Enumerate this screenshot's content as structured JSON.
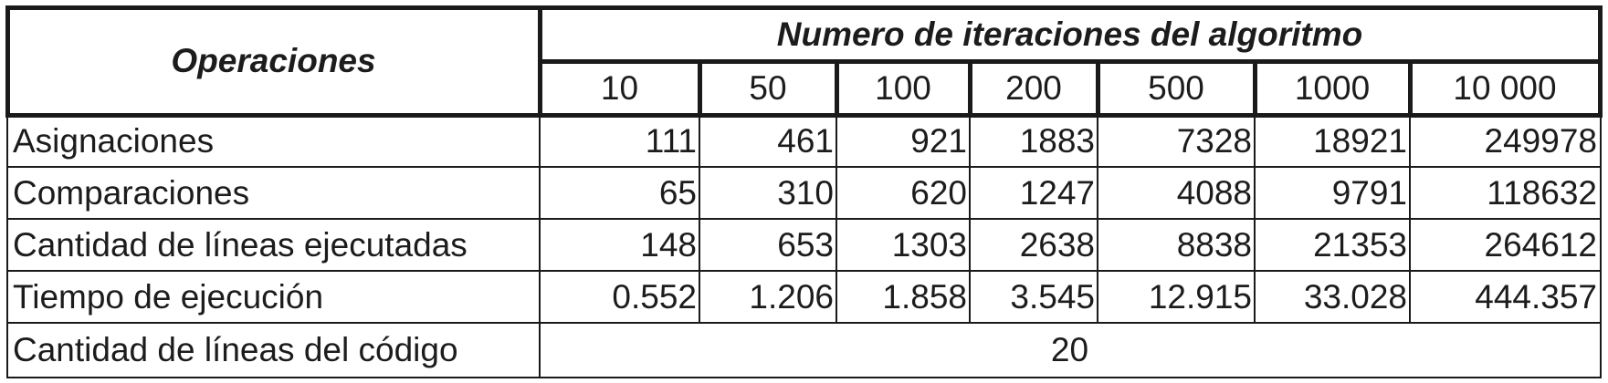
{
  "table": {
    "header_left": "Operaciones",
    "header_group": "Numero de iteraciones del algoritmo",
    "iterations": [
      "10",
      "50",
      "100",
      "200",
      "500",
      "1000",
      "10 000"
    ],
    "rows": [
      {
        "label": "Asignaciones",
        "values": [
          "111",
          "461",
          "921",
          "1883",
          "7328",
          "18921",
          "249978"
        ]
      },
      {
        "label": "Comparaciones",
        "values": [
          "65",
          "310",
          "620",
          "1247",
          "4088",
          "9791",
          "118632"
        ]
      },
      {
        "label": "Cantidad de líneas ejecutadas",
        "values": [
          "148",
          "653",
          "1303",
          "2638",
          "8838",
          "21353",
          "264612"
        ]
      },
      {
        "label": "Tiempo de ejecución",
        "values": [
          "0.552",
          "1.206",
          "1.858",
          "3.545",
          "12.915",
          "33.028",
          "444.357"
        ]
      }
    ],
    "footer_label": "Cantidad de líneas del código",
    "footer_value": "20"
  }
}
